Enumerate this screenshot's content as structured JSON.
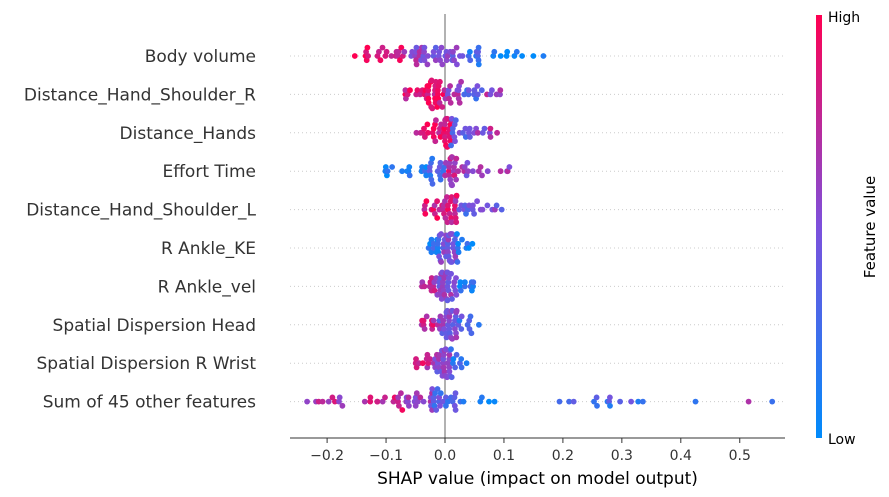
{
  "chart_data": {
    "type": "scatter",
    "subtype": "shap-beeswarm",
    "title": "",
    "xlabel": "SHAP value (impact on model output)",
    "ylabel": "",
    "xlim": [
      -0.28,
      0.59
    ],
    "xticks": [
      -0.2,
      -0.1,
      0.0,
      0.1,
      0.2,
      0.3,
      0.4,
      0.5
    ],
    "xtick_labels": [
      "−0.2",
      "−0.1",
      "0.0",
      "0.1",
      "0.2",
      "0.3",
      "0.4",
      "0.5"
    ],
    "colorbar": {
      "label": "Feature value",
      "high_label": "High",
      "low_label": "Low",
      "low_color": "#008bfb",
      "high_color": "#ff0052"
    },
    "features": [
      {
        "name": "Body volume",
        "dist": [
          [
            -0.16,
            -0.12,
            6,
            0.9
          ],
          [
            -0.12,
            -0.07,
            14,
            0.85
          ],
          [
            -0.07,
            -0.02,
            18,
            0.6
          ],
          [
            -0.02,
            0.03,
            22,
            0.45
          ],
          [
            0.03,
            0.07,
            10,
            0.25
          ],
          [
            0.07,
            0.17,
            10,
            0.05
          ]
        ]
      },
      {
        "name": "Distance_Hand_Shoulder_R",
        "dist": [
          [
            -0.07,
            -0.04,
            8,
            0.85
          ],
          [
            -0.04,
            0.0,
            30,
            0.9
          ],
          [
            0.0,
            0.03,
            14,
            0.6
          ],
          [
            0.03,
            0.07,
            10,
            0.35
          ],
          [
            0.07,
            0.1,
            6,
            0.6
          ]
        ]
      },
      {
        "name": "Distance_Hands",
        "dist": [
          [
            -0.05,
            -0.02,
            8,
            0.85
          ],
          [
            -0.02,
            0.01,
            26,
            0.9
          ],
          [
            0.01,
            0.04,
            12,
            0.4
          ],
          [
            0.04,
            0.07,
            8,
            0.55
          ],
          [
            0.07,
            0.09,
            4,
            0.65
          ]
        ]
      },
      {
        "name": "Effort Time",
        "dist": [
          [
            -0.12,
            -0.08,
            5,
            0.05
          ],
          [
            -0.08,
            -0.03,
            10,
            0.1
          ],
          [
            -0.03,
            0.0,
            14,
            0.3
          ],
          [
            0.0,
            0.02,
            20,
            0.75
          ],
          [
            0.02,
            0.05,
            8,
            0.6
          ],
          [
            0.05,
            0.12,
            8,
            0.6
          ]
        ]
      },
      {
        "name": "Distance_Hand_Shoulder_L",
        "dist": [
          [
            -0.04,
            -0.01,
            10,
            0.85
          ],
          [
            -0.01,
            0.02,
            24,
            0.8
          ],
          [
            0.02,
            0.05,
            10,
            0.35
          ],
          [
            0.05,
            0.1,
            8,
            0.5
          ]
        ]
      },
      {
        "name": "R Ankle_KE",
        "dist": [
          [
            -0.03,
            -0.01,
            12,
            0.15
          ],
          [
            -0.01,
            0.02,
            30,
            0.5
          ],
          [
            0.02,
            0.05,
            10,
            0.1
          ]
        ]
      },
      {
        "name": "R Ankle_vel",
        "dist": [
          [
            -0.04,
            -0.01,
            12,
            0.7
          ],
          [
            -0.01,
            0.02,
            30,
            0.55
          ],
          [
            0.02,
            0.05,
            10,
            0.15
          ]
        ]
      },
      {
        "name": "Spatial Dispersion Head",
        "dist": [
          [
            -0.04,
            -0.01,
            12,
            0.8
          ],
          [
            -0.01,
            0.02,
            30,
            0.5
          ],
          [
            0.02,
            0.06,
            10,
            0.3
          ]
        ]
      },
      {
        "name": "Spatial Dispersion R Wrist",
        "dist": [
          [
            -0.05,
            -0.02,
            10,
            0.8
          ],
          [
            -0.02,
            0.01,
            28,
            0.55
          ],
          [
            0.01,
            0.05,
            10,
            0.2
          ]
        ]
      },
      {
        "name": "Sum of 45 other features",
        "dist": [
          [
            -0.24,
            -0.15,
            10,
            0.7
          ],
          [
            -0.15,
            -0.07,
            14,
            0.8
          ],
          [
            -0.07,
            -0.02,
            18,
            0.6
          ],
          [
            -0.02,
            0.02,
            20,
            0.35
          ],
          [
            0.02,
            0.1,
            6,
            0.1
          ],
          [
            0.16,
            0.35,
            14,
            0.3
          ],
          [
            0.42,
            0.43,
            1,
            0.2
          ],
          [
            0.51,
            0.52,
            1,
            0.85
          ],
          [
            0.55,
            0.56,
            1,
            0.1
          ]
        ]
      }
    ]
  }
}
